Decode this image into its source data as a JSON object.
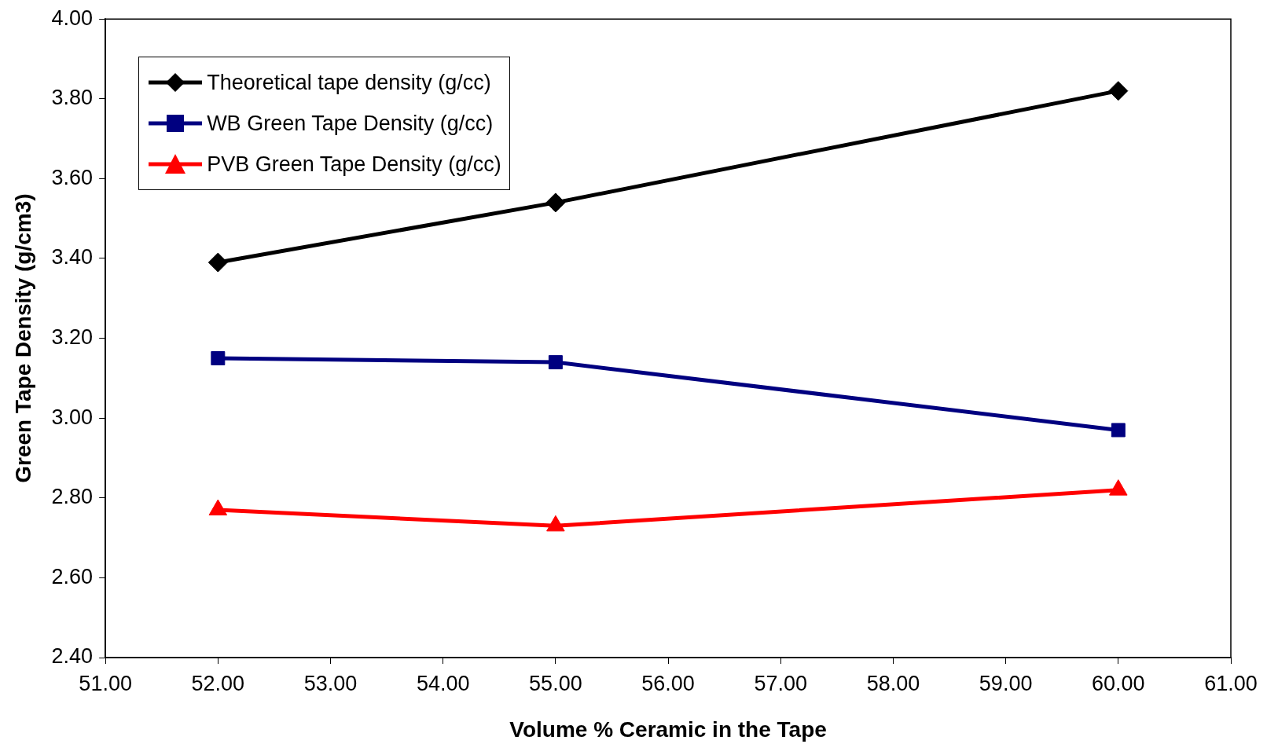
{
  "chart_data": {
    "type": "line",
    "xlabel": "Volume % Ceramic in the Tape",
    "ylabel": "Green Tape Density (g/cm3)",
    "x": [
      52,
      55,
      60
    ],
    "series": [
      {
        "name": "Theoretical tape density (g/cc)",
        "color": "#000000",
        "marker": "diamond",
        "values": [
          3.39,
          3.54,
          3.82
        ]
      },
      {
        "name": "WB Green Tape Density (g/cc)",
        "color": "#000080",
        "marker": "square",
        "values": [
          3.15,
          3.14,
          2.97
        ]
      },
      {
        "name": "PVB Green Tape Density (g/cc)",
        "color": "#ff0000",
        "marker": "triangle",
        "values": [
          2.77,
          2.73,
          2.82
        ]
      }
    ],
    "xlim": [
      51,
      61
    ],
    "xticks": [
      {
        "value": 51,
        "label": "51.00"
      },
      {
        "value": 52,
        "label": "52.00"
      },
      {
        "value": 53,
        "label": "53.00"
      },
      {
        "value": 54,
        "label": "54.00"
      },
      {
        "value": 55,
        "label": "55.00"
      },
      {
        "value": 56,
        "label": "56.00"
      },
      {
        "value": 57,
        "label": "57.00"
      },
      {
        "value": 58,
        "label": "58.00"
      },
      {
        "value": 59,
        "label": "59.00"
      },
      {
        "value": 60,
        "label": "60.00"
      },
      {
        "value": 61,
        "label": "61.00"
      }
    ],
    "ylim": [
      2.4,
      4.0
    ],
    "yticks": [
      {
        "value": 2.4,
        "label": "2.40"
      },
      {
        "value": 2.6,
        "label": "2.60"
      },
      {
        "value": 2.8,
        "label": "2.80"
      },
      {
        "value": 3.0,
        "label": "3.00"
      },
      {
        "value": 3.2,
        "label": "3.20"
      },
      {
        "value": 3.4,
        "label": "3.40"
      },
      {
        "value": 3.6,
        "label": "3.60"
      },
      {
        "value": 3.8,
        "label": "3.80"
      },
      {
        "value": 4.0,
        "label": "4.00"
      }
    ],
    "grid": false,
    "legend": "top left",
    "line_style": "solid"
  }
}
